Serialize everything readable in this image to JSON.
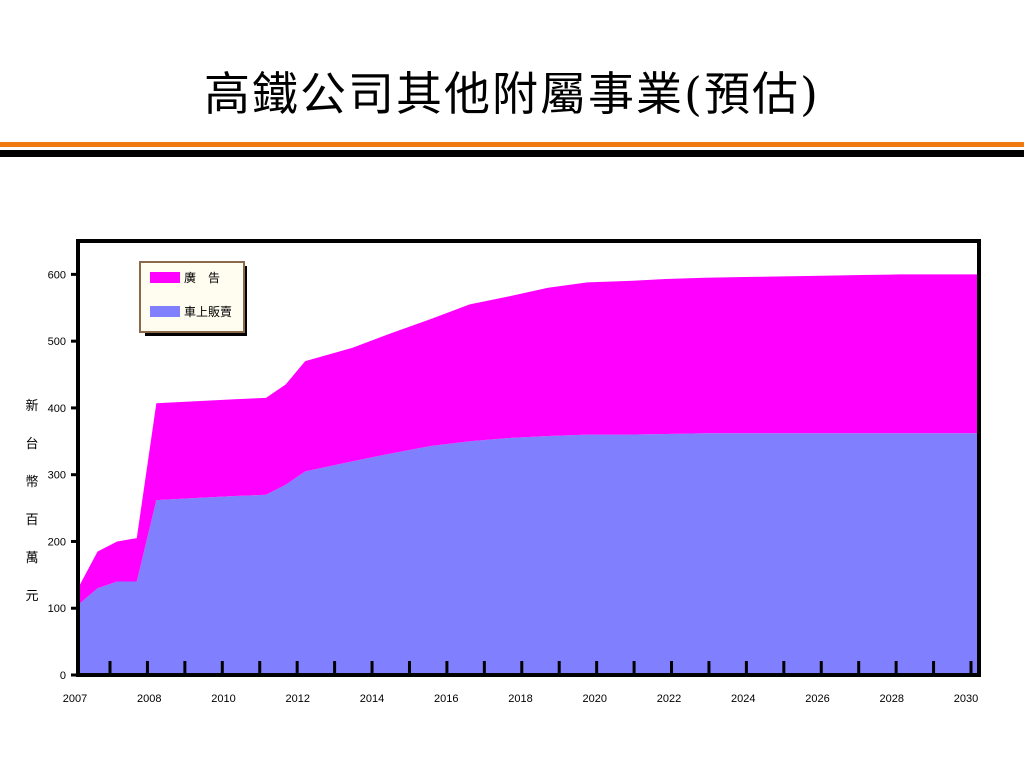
{
  "slide": {
    "title": "高鐵公司其他附屬事業(預估)"
  },
  "colors": {
    "advertising": "#ff00ff",
    "onboard_sales": "#8080ff",
    "frame": "#000000",
    "title_rule_orange": "#f07a10",
    "title_rule_black": "#000000"
  },
  "chart_data": {
    "type": "area",
    "stacked": true,
    "ylabel": "新台幣百萬元",
    "xlim": [
      2007,
      2030
    ],
    "ylim": [
      0,
      650
    ],
    "yticks": [
      0,
      100,
      200,
      300,
      400,
      500,
      600
    ],
    "xtick_labels": [
      "2007",
      "2008",
      "2010",
      "2012",
      "2014",
      "2016",
      "2018",
      "2020",
      "2022",
      "2024",
      "2026",
      "2028",
      "2030"
    ],
    "legend_position": "top-left",
    "x": [
      2007.0,
      2007.5,
      2008.0,
      2008.5,
      2009.0,
      2010.0,
      2011.0,
      2011.8,
      2012.3,
      2012.8,
      2014.0,
      2015.0,
      2016.0,
      2017.0,
      2018.0,
      2019.0,
      2020.0,
      2021.0,
      2022.0,
      2023.0,
      2024.0,
      2025.0,
      2026.0,
      2027.0,
      2028.0,
      2029.0,
      2030.0
    ],
    "series": [
      {
        "name": "車上販賣",
        "color": "#8080ff",
        "values": [
          105,
          130,
          140,
          140,
          262,
          265,
          268,
          270,
          285,
          305,
          320,
          332,
          343,
          350,
          355,
          358,
          360,
          360,
          361,
          362,
          362,
          362,
          362,
          362,
          362,
          362,
          362
        ]
      },
      {
        "name": "廣　告",
        "color": "#ff00ff",
        "values": [
          25,
          55,
          60,
          65,
          145,
          145,
          145,
          145,
          150,
          165,
          170,
          180,
          190,
          205,
          212,
          222,
          228,
          230,
          232,
          233,
          234,
          235,
          236,
          237,
          238,
          238,
          238
        ]
      }
    ]
  }
}
